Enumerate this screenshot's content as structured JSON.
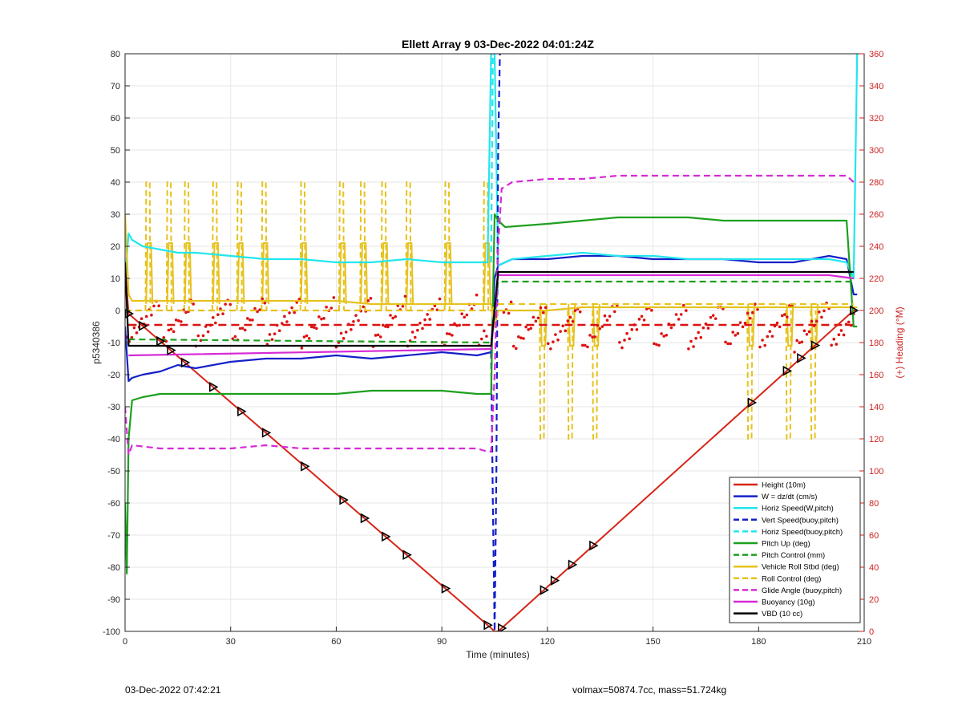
{
  "chart_data": {
    "type": "line",
    "title": "Ellett Array 9 03-Dec-2022 04:01:24Z",
    "xlabel": "Time (minutes)",
    "ylabel": "p5340386",
    "y2label": "(+) Heading (°M)",
    "xlim": [
      0,
      210
    ],
    "ylim": [
      -100,
      80
    ],
    "y2lim": [
      0,
      360
    ],
    "xticks": [
      0,
      30,
      60,
      90,
      120,
      150,
      180,
      210
    ],
    "yticks": [
      -100,
      -90,
      -80,
      -70,
      -60,
      -50,
      -40,
      -30,
      -20,
      -10,
      0,
      10,
      20,
      30,
      40,
      50,
      60,
      70,
      80
    ],
    "y2ticks": [
      0,
      20,
      40,
      60,
      80,
      100,
      120,
      140,
      160,
      180,
      200,
      220,
      240,
      260,
      280,
      300,
      320,
      340,
      360
    ],
    "grid": true,
    "legend_position": "bottom-right",
    "colors": {
      "height": "#d62518",
      "w": "#1420c8",
      "horiz": "#22e6ee",
      "vert_buoy": "#1420c8",
      "horiz_buoy": "#22e6ee",
      "pitch": "#1ea01e",
      "pitch_ctrl": "#1ea01e",
      "roll": "#e6c21e",
      "roll_ctrl": "#e6c21e",
      "glide": "#d62ad6",
      "buoy": "#d62ad6",
      "vbd": "#000000",
      "heading": "#dd1111",
      "right_axis": "#cc2222"
    },
    "series": [
      {
        "key": "height",
        "name": "Height (10m)",
        "style": "solid",
        "x": [
          0,
          1,
          104,
          105,
          106,
          207,
          208
        ],
        "y": [
          14,
          -1,
          -99,
          -100,
          -100,
          0,
          0
        ]
      },
      {
        "key": "w",
        "name": "W = dz/dt (cm/s)",
        "style": "solid",
        "x": [
          0,
          1,
          2,
          5,
          10,
          15,
          20,
          30,
          40,
          50,
          60,
          70,
          80,
          90,
          100,
          104,
          105,
          106,
          110,
          120,
          130,
          140,
          150,
          160,
          170,
          180,
          190,
          195,
          200,
          205,
          207,
          208
        ],
        "y": [
          -5,
          -22,
          -21,
          -20,
          -19,
          -17,
          -18,
          -16,
          -15,
          -15,
          -14,
          -15,
          -14,
          -13,
          -14,
          -13,
          10,
          14,
          16,
          16,
          17,
          17,
          16,
          16,
          16,
          15,
          15,
          16,
          17,
          16,
          5,
          5
        ]
      },
      {
        "key": "horiz",
        "name": "Horiz Speed(W,pitch)",
        "style": "solid",
        "x": [
          0,
          1,
          2,
          5,
          10,
          15,
          20,
          30,
          40,
          50,
          60,
          70,
          80,
          90,
          100,
          103,
          104,
          105,
          106,
          110,
          120,
          130,
          140,
          150,
          160,
          170,
          180,
          190,
          200,
          205,
          207,
          208
        ],
        "y": [
          10,
          24,
          22,
          20,
          19,
          18,
          18,
          17,
          16,
          16,
          15,
          15,
          16,
          15,
          15,
          15,
          80,
          80,
          14,
          16,
          17,
          18,
          17,
          17,
          16,
          16,
          16,
          16,
          16,
          15,
          10,
          80
        ]
      },
      {
        "key": "vert_buoy",
        "name": "Vert Speed(buoy,pitch)",
        "style": "dashed",
        "x": [
          104,
          104.5,
          105,
          105.5,
          106,
          106.5
        ],
        "y": [
          -13,
          -60,
          -100,
          -50,
          50,
          80
        ]
      },
      {
        "key": "horiz_buoy",
        "name": "Horiz Speed(buoy,pitch)",
        "style": "dashed",
        "x": [
          104,
          104.5,
          105
        ],
        "y": [
          15,
          80,
          80
        ]
      },
      {
        "key": "pitch",
        "name": "Pitch Up (deg)",
        "style": "solid",
        "x": [
          0,
          0.5,
          1,
          2,
          5,
          10,
          20,
          30,
          40,
          50,
          60,
          70,
          80,
          90,
          100,
          104,
          105,
          106,
          108,
          120,
          130,
          140,
          150,
          160,
          170,
          180,
          190,
          200,
          205,
          207,
          208
        ],
        "y": [
          -60,
          -82,
          -40,
          -28,
          -27,
          -26,
          -26,
          -26,
          -26,
          -26,
          -26,
          -25,
          -25,
          -25,
          -26,
          -26,
          30,
          28,
          26,
          27,
          28,
          29,
          29,
          29,
          28,
          28,
          28,
          28,
          28,
          -5,
          -5
        ]
      },
      {
        "key": "pitch_ctrl",
        "name": "Pitch Control (mm)",
        "style": "dashed",
        "x": [
          1,
          104,
          105,
          106,
          207
        ],
        "y": [
          -9,
          -10,
          -3,
          9,
          9
        ]
      },
      {
        "key": "roll",
        "name": "Vehicle Roll Stbd (deg)",
        "style": "solid",
        "x": [
          0,
          1,
          2,
          5,
          10,
          20,
          30,
          40,
          50,
          60,
          70,
          80,
          90,
          100,
          104,
          105,
          106,
          110,
          120,
          130,
          140,
          150,
          160,
          170,
          180,
          190,
          200,
          207,
          208
        ],
        "y": [
          30,
          5,
          3,
          3,
          3,
          3,
          3,
          3,
          3,
          3,
          2,
          2,
          2,
          2,
          2,
          -5,
          0,
          0,
          0,
          1,
          1,
          1,
          1,
          1,
          1,
          1,
          1,
          1,
          1
        ]
      },
      {
        "key": "roll_ctrl",
        "name": "Roll Control (deg)",
        "style": "dashed",
        "x": [
          0,
          2,
          104,
          106,
          207
        ],
        "y": [
          0,
          0,
          0,
          2,
          2
        ]
      },
      {
        "key": "glide",
        "name": "Glide Angle (buoy,pitch)",
        "style": "dashed",
        "x": [
          0,
          1,
          2,
          10,
          20,
          30,
          40,
          50,
          60,
          70,
          80,
          90,
          100,
          103,
          104,
          105,
          106,
          107,
          110,
          120,
          130,
          140,
          150,
          160,
          170,
          180,
          190,
          200,
          205,
          207
        ],
        "y": [
          -30,
          -45,
          -42,
          -43,
          -43,
          -43,
          -42,
          -43,
          -43,
          -43,
          -43,
          -43,
          -43,
          -44,
          -44,
          -20,
          20,
          38,
          40,
          41,
          41,
          42,
          42,
          42,
          42,
          42,
          42,
          42,
          42,
          40
        ]
      },
      {
        "key": "buoy",
        "name": "Buoyancy (10g)",
        "style": "solid",
        "x": [
          1,
          104,
          106,
          200,
          207
        ],
        "y": [
          -14,
          -12,
          11,
          11,
          10
        ]
      },
      {
        "key": "vbd",
        "name": "VBD (10 cc)",
        "style": "solid",
        "x": [
          0,
          0.5,
          1,
          104,
          106,
          207
        ],
        "y": [
          15,
          2,
          -11,
          -11,
          12,
          12
        ]
      }
    ],
    "roll_spikes": [
      7,
      13,
      18,
      26,
      33,
      40,
      51,
      62,
      68,
      74,
      81,
      92,
      103,
      119,
      127,
      134,
      178,
      189,
      196
    ],
    "height_markers": [
      1,
      5,
      10,
      13,
      17,
      25,
      33,
      40,
      51,
      62,
      68,
      74,
      80,
      91,
      103,
      107,
      119,
      122,
      127,
      133,
      178,
      188,
      192,
      196,
      207
    ],
    "heading_points": {
      "descent_base": 193,
      "climb_base": 190,
      "ramp_period": 10,
      "ramp_amplitude": 14
    },
    "heading_mean": 191
  },
  "footer": {
    "left": "03-Dec-2022 07:42:21",
    "right": "volmax=50874.7cc, mass=51.724kg"
  }
}
